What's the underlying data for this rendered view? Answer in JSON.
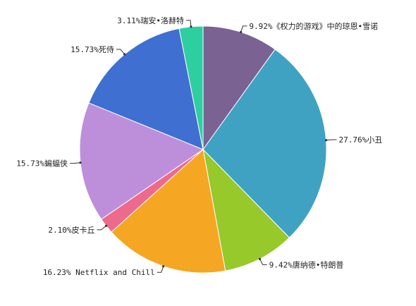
{
  "chart_data": {
    "type": "pie",
    "title": "",
    "slices": [
      {
        "label": "《权力的游戏》中的琼恩•雪诺",
        "percent": 9.92,
        "percent_label": "9.92%",
        "color": "#7a6393"
      },
      {
        "label": "小丑",
        "percent": 27.76,
        "percent_label": "27.76%",
        "color": "#3fa2c3"
      },
      {
        "label": "唐纳德•特朗普",
        "percent": 9.42,
        "percent_label": "9.42%",
        "color": "#97c92b"
      },
      {
        "label": "Netflix and Chill",
        "percent": 16.23,
        "percent_label": "16.23%",
        "color": "#f5a623"
      },
      {
        "label": "皮卡丘",
        "percent": 2.1,
        "percent_label": "2.10%",
        "color": "#ee6a8c"
      },
      {
        "label": "蝙蝠侠",
        "percent": 15.73,
        "percent_label": "15.73%",
        "color": "#bd8fdb"
      },
      {
        "label": "死侍",
        "percent": 15.73,
        "percent_label": "15.73%",
        "color": "#3f6fd0"
      },
      {
        "label": "瑞安•洛赫特",
        "percent": 3.11,
        "percent_label": "3.11%",
        "color": "#2dcfa0"
      }
    ],
    "start_angle_deg": 0,
    "direction": "clockwise",
    "legend": "none",
    "labels": "outside-with-leader-lines"
  }
}
